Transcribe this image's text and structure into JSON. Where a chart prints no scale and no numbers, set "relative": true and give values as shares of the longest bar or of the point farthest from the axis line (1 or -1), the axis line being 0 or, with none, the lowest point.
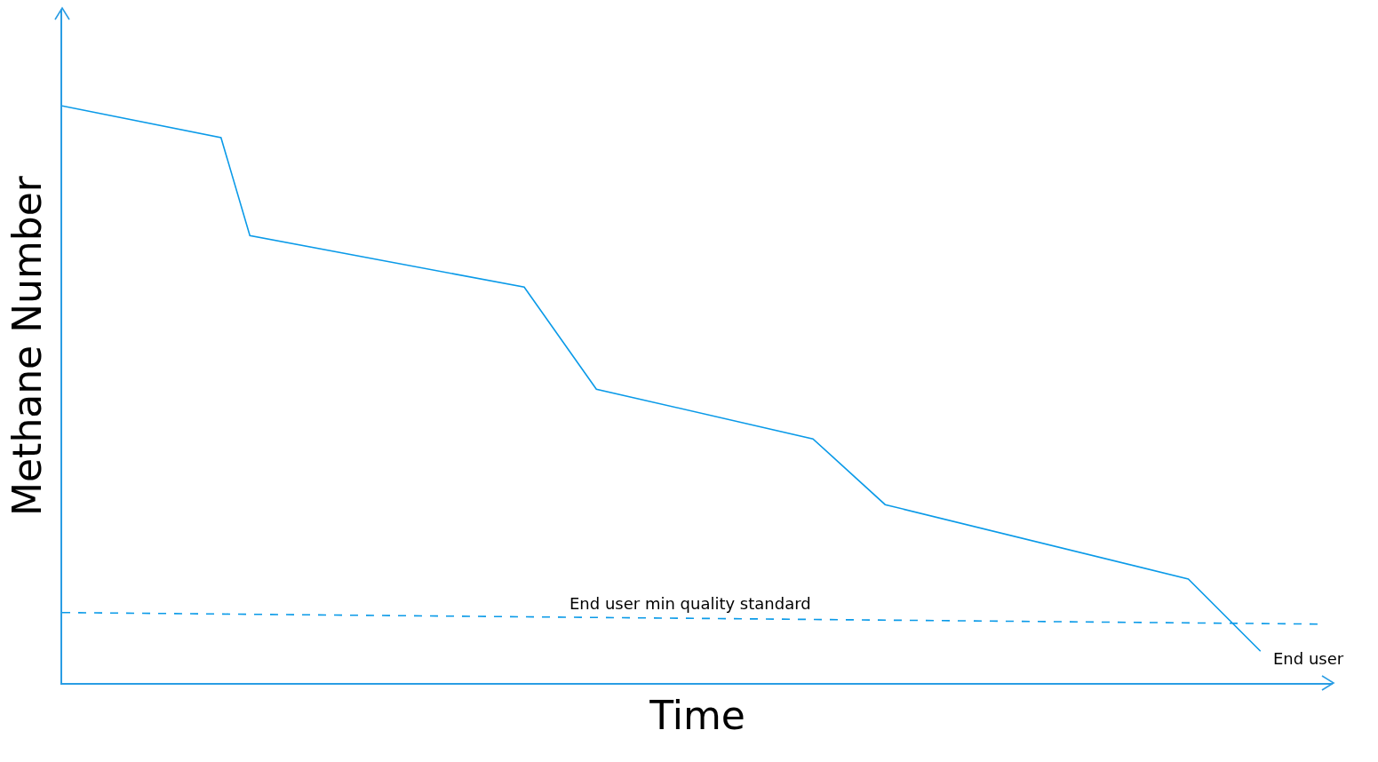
{
  "chart_data": {
    "type": "line",
    "relative": true,
    "xlabel": "Time",
    "ylabel": "Methane Number",
    "categories": [
      null,
      null,
      null,
      null,
      null,
      null,
      null,
      null,
      null,
      null,
      null,
      null,
      null,
      null,
      null,
      null,
      null,
      null,
      null,
      null,
      null,
      null,
      null,
      null,
      null,
      null,
      null,
      null,
      null,
      null,
      null,
      null,
      null,
      null,
      null,
      null,
      null,
      null,
      null,
      null,
      null,
      null,
      null,
      null,
      null,
      null,
      null,
      null,
      null,
      null,
      null,
      null,
      null,
      null,
      null,
      null,
      null,
      null,
      null,
      null,
      null,
      null,
      null,
      null,
      null,
      null,
      null,
      null,
      null,
      null,
      null,
      null,
      null,
      null,
      null,
      null,
      null,
      null,
      null,
      null,
      null,
      null,
      null,
      null,
      null,
      null,
      null,
      null
    ],
    "series": [
      {
        "color": "#0a9ae8",
        "line_style": "solid",
        "values": [
          1,
          null,
          null,
          null,
          null,
          null,
          null,
          null,
          null,
          null,
          null,
          0.945,
          null,
          0.775,
          null,
          null,
          null,
          null,
          null,
          null,
          null,
          null,
          null,
          null,
          null,
          null,
          null,
          null,
          null,
          null,
          null,
          null,
          0.686,
          null,
          null,
          null,
          null,
          0.509,
          null,
          null,
          null,
          null,
          null,
          null,
          null,
          null,
          null,
          null,
          null,
          null,
          null,
          null,
          0.423,
          null,
          null,
          null,
          null,
          0.309,
          null,
          null,
          null,
          null,
          null,
          null,
          null,
          null,
          null,
          null,
          null,
          null,
          null,
          null,
          null,
          null,
          null,
          null,
          null,
          null,
          0.18,
          null,
          null,
          null,
          null,
          0.055,
          null,
          null,
          null,
          null
        ]
      },
      {
        "color": "#0a9ae8",
        "line_style": "dashed",
        "values": [
          0.122,
          null,
          null,
          null,
          null,
          null,
          null,
          null,
          null,
          null,
          null,
          null,
          null,
          null,
          null,
          null,
          null,
          null,
          null,
          null,
          null,
          null,
          null,
          null,
          null,
          null,
          null,
          null,
          null,
          null,
          null,
          null,
          null,
          null,
          null,
          null,
          null,
          null,
          null,
          null,
          null,
          null,
          null,
          null,
          null,
          null,
          null,
          null,
          null,
          null,
          null,
          null,
          null,
          null,
          null,
          null,
          null,
          null,
          null,
          null,
          null,
          null,
          null,
          null,
          null,
          null,
          null,
          null,
          null,
          null,
          null,
          null,
          null,
          null,
          null,
          null,
          null,
          null,
          null,
          null,
          null,
          null,
          null,
          null,
          null,
          null,
          null,
          0.102
        ]
      }
    ],
    "annotations": [
      "End user min quality standard",
      "End user"
    ]
  }
}
